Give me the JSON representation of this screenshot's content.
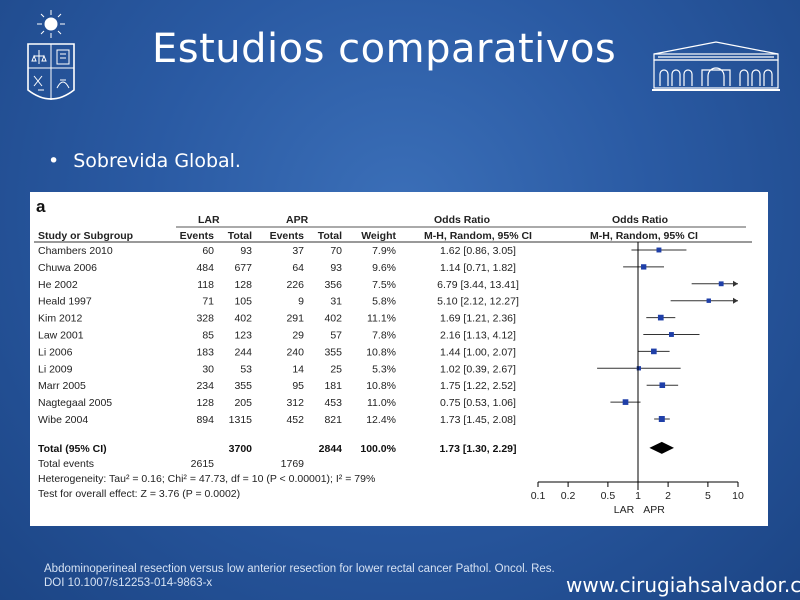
{
  "slide": {
    "title": "Estudios comparativos",
    "bullet": "Sobrevida Global.",
    "citation_line1": "Abdominoperineal resection versus low anterior resection for lower rectal cancer Pathol. Oncol. Res.",
    "citation_line2": "DOI 10.1007/s12253-014-9863-x",
    "website": "www.cirugiahsalvador.cl"
  },
  "chart_data": {
    "type": "table",
    "panel_label": "a",
    "group_headers": {
      "lar": "LAR",
      "apr": "APR",
      "odds_ratio_text": "Odds Ratio",
      "odds_ratio_plot": "Odds Ratio"
    },
    "columns": [
      "Study or Subgroup",
      "Events",
      "Total",
      "Events",
      "Total",
      "Weight",
      "M-H, Random, 95% CI",
      "M-H, Random, 95% CI"
    ],
    "rows": [
      {
        "study": "Chambers 2010",
        "lar_events": "60",
        "lar_total": "93",
        "apr_events": "37",
        "apr_total": "70",
        "weight": "7.9%",
        "ci_text": "1.62 [0.86, 3.05]",
        "or": 1.62,
        "lo": 0.86,
        "hi": 3.05
      },
      {
        "study": "Chuwa 2006",
        "lar_events": "484",
        "lar_total": "677",
        "apr_events": "64",
        "apr_total": "93",
        "weight": "9.6%",
        "ci_text": "1.14 [0.71, 1.82]",
        "or": 1.14,
        "lo": 0.71,
        "hi": 1.82
      },
      {
        "study": "He 2002",
        "lar_events": "118",
        "lar_total": "128",
        "apr_events": "226",
        "apr_total": "356",
        "weight": "7.5%",
        "ci_text": "6.79 [3.44, 13.41]",
        "or": 6.79,
        "lo": 3.44,
        "hi": 13.41
      },
      {
        "study": "Heald 1997",
        "lar_events": "71",
        "lar_total": "105",
        "apr_events": "9",
        "apr_total": "31",
        "weight": "5.8%",
        "ci_text": "5.10 [2.12, 12.27]",
        "or": 5.1,
        "lo": 2.12,
        "hi": 12.27
      },
      {
        "study": "Kim 2012",
        "lar_events": "328",
        "lar_total": "402",
        "apr_events": "291",
        "apr_total": "402",
        "weight": "11.1%",
        "ci_text": "1.69 [1.21, 2.36]",
        "or": 1.69,
        "lo": 1.21,
        "hi": 2.36
      },
      {
        "study": "Law 2001",
        "lar_events": "85",
        "lar_total": "123",
        "apr_events": "29",
        "apr_total": "57",
        "weight": "7.8%",
        "ci_text": "2.16 [1.13, 4.12]",
        "or": 2.16,
        "lo": 1.13,
        "hi": 4.12
      },
      {
        "study": "Li 2006",
        "lar_events": "183",
        "lar_total": "244",
        "apr_events": "240",
        "apr_total": "355",
        "weight": "10.8%",
        "ci_text": "1.44 [1.00, 2.07]",
        "or": 1.44,
        "lo": 1.0,
        "hi": 2.07
      },
      {
        "study": "Li 2009",
        "lar_events": "30",
        "lar_total": "53",
        "apr_events": "14",
        "apr_total": "25",
        "weight": "5.3%",
        "ci_text": "1.02 [0.39, 2.67]",
        "or": 1.02,
        "lo": 0.39,
        "hi": 2.67
      },
      {
        "study": "Marr 2005",
        "lar_events": "234",
        "lar_total": "355",
        "apr_events": "95",
        "apr_total": "181",
        "weight": "10.8%",
        "ci_text": "1.75 [1.22, 2.52]",
        "or": 1.75,
        "lo": 1.22,
        "hi": 2.52
      },
      {
        "study": "Nagtegaal 2005",
        "lar_events": "128",
        "lar_total": "205",
        "apr_events": "312",
        "apr_total": "453",
        "weight": "11.0%",
        "ci_text": "0.75 [0.53, 1.06]",
        "or": 0.75,
        "lo": 0.53,
        "hi": 1.06
      },
      {
        "study": "Wibe 2004",
        "lar_events": "894",
        "lar_total": "1315",
        "apr_events": "452",
        "apr_total": "821",
        "weight": "12.4%",
        "ci_text": "1.73 [1.45, 2.08]",
        "or": 1.73,
        "lo": 1.45,
        "hi": 2.08
      }
    ],
    "total": {
      "label": "Total (95% CI)",
      "lar_total": "3700",
      "apr_total": "2844",
      "weight": "100.0%",
      "ci_text": "1.73 [1.30, 2.29]",
      "or": 1.73,
      "lo": 1.3,
      "hi": 2.29
    },
    "total_events": {
      "label": "Total events",
      "lar_events": "2615",
      "apr_events": "1769"
    },
    "heterogeneity": "Heterogeneity: Tau² = 0.16; Chi² = 47.73, df = 10 (P < 0.00001); I² = 79%",
    "overall_effect": "Test for overall effect: Z = 3.76 (P = 0.0002)",
    "x_scale": "log",
    "x_ticks": [
      0.1,
      0.2,
      0.5,
      1,
      2,
      5,
      10
    ],
    "x_tick_labels": [
      "0.1",
      "0.2",
      "0.5",
      "1",
      "2",
      "5",
      "10"
    ],
    "x_range": [
      0.1,
      10
    ],
    "xlabel_left": "LAR",
    "xlabel_right": "APR",
    "point_color": "#1f3fa8"
  }
}
